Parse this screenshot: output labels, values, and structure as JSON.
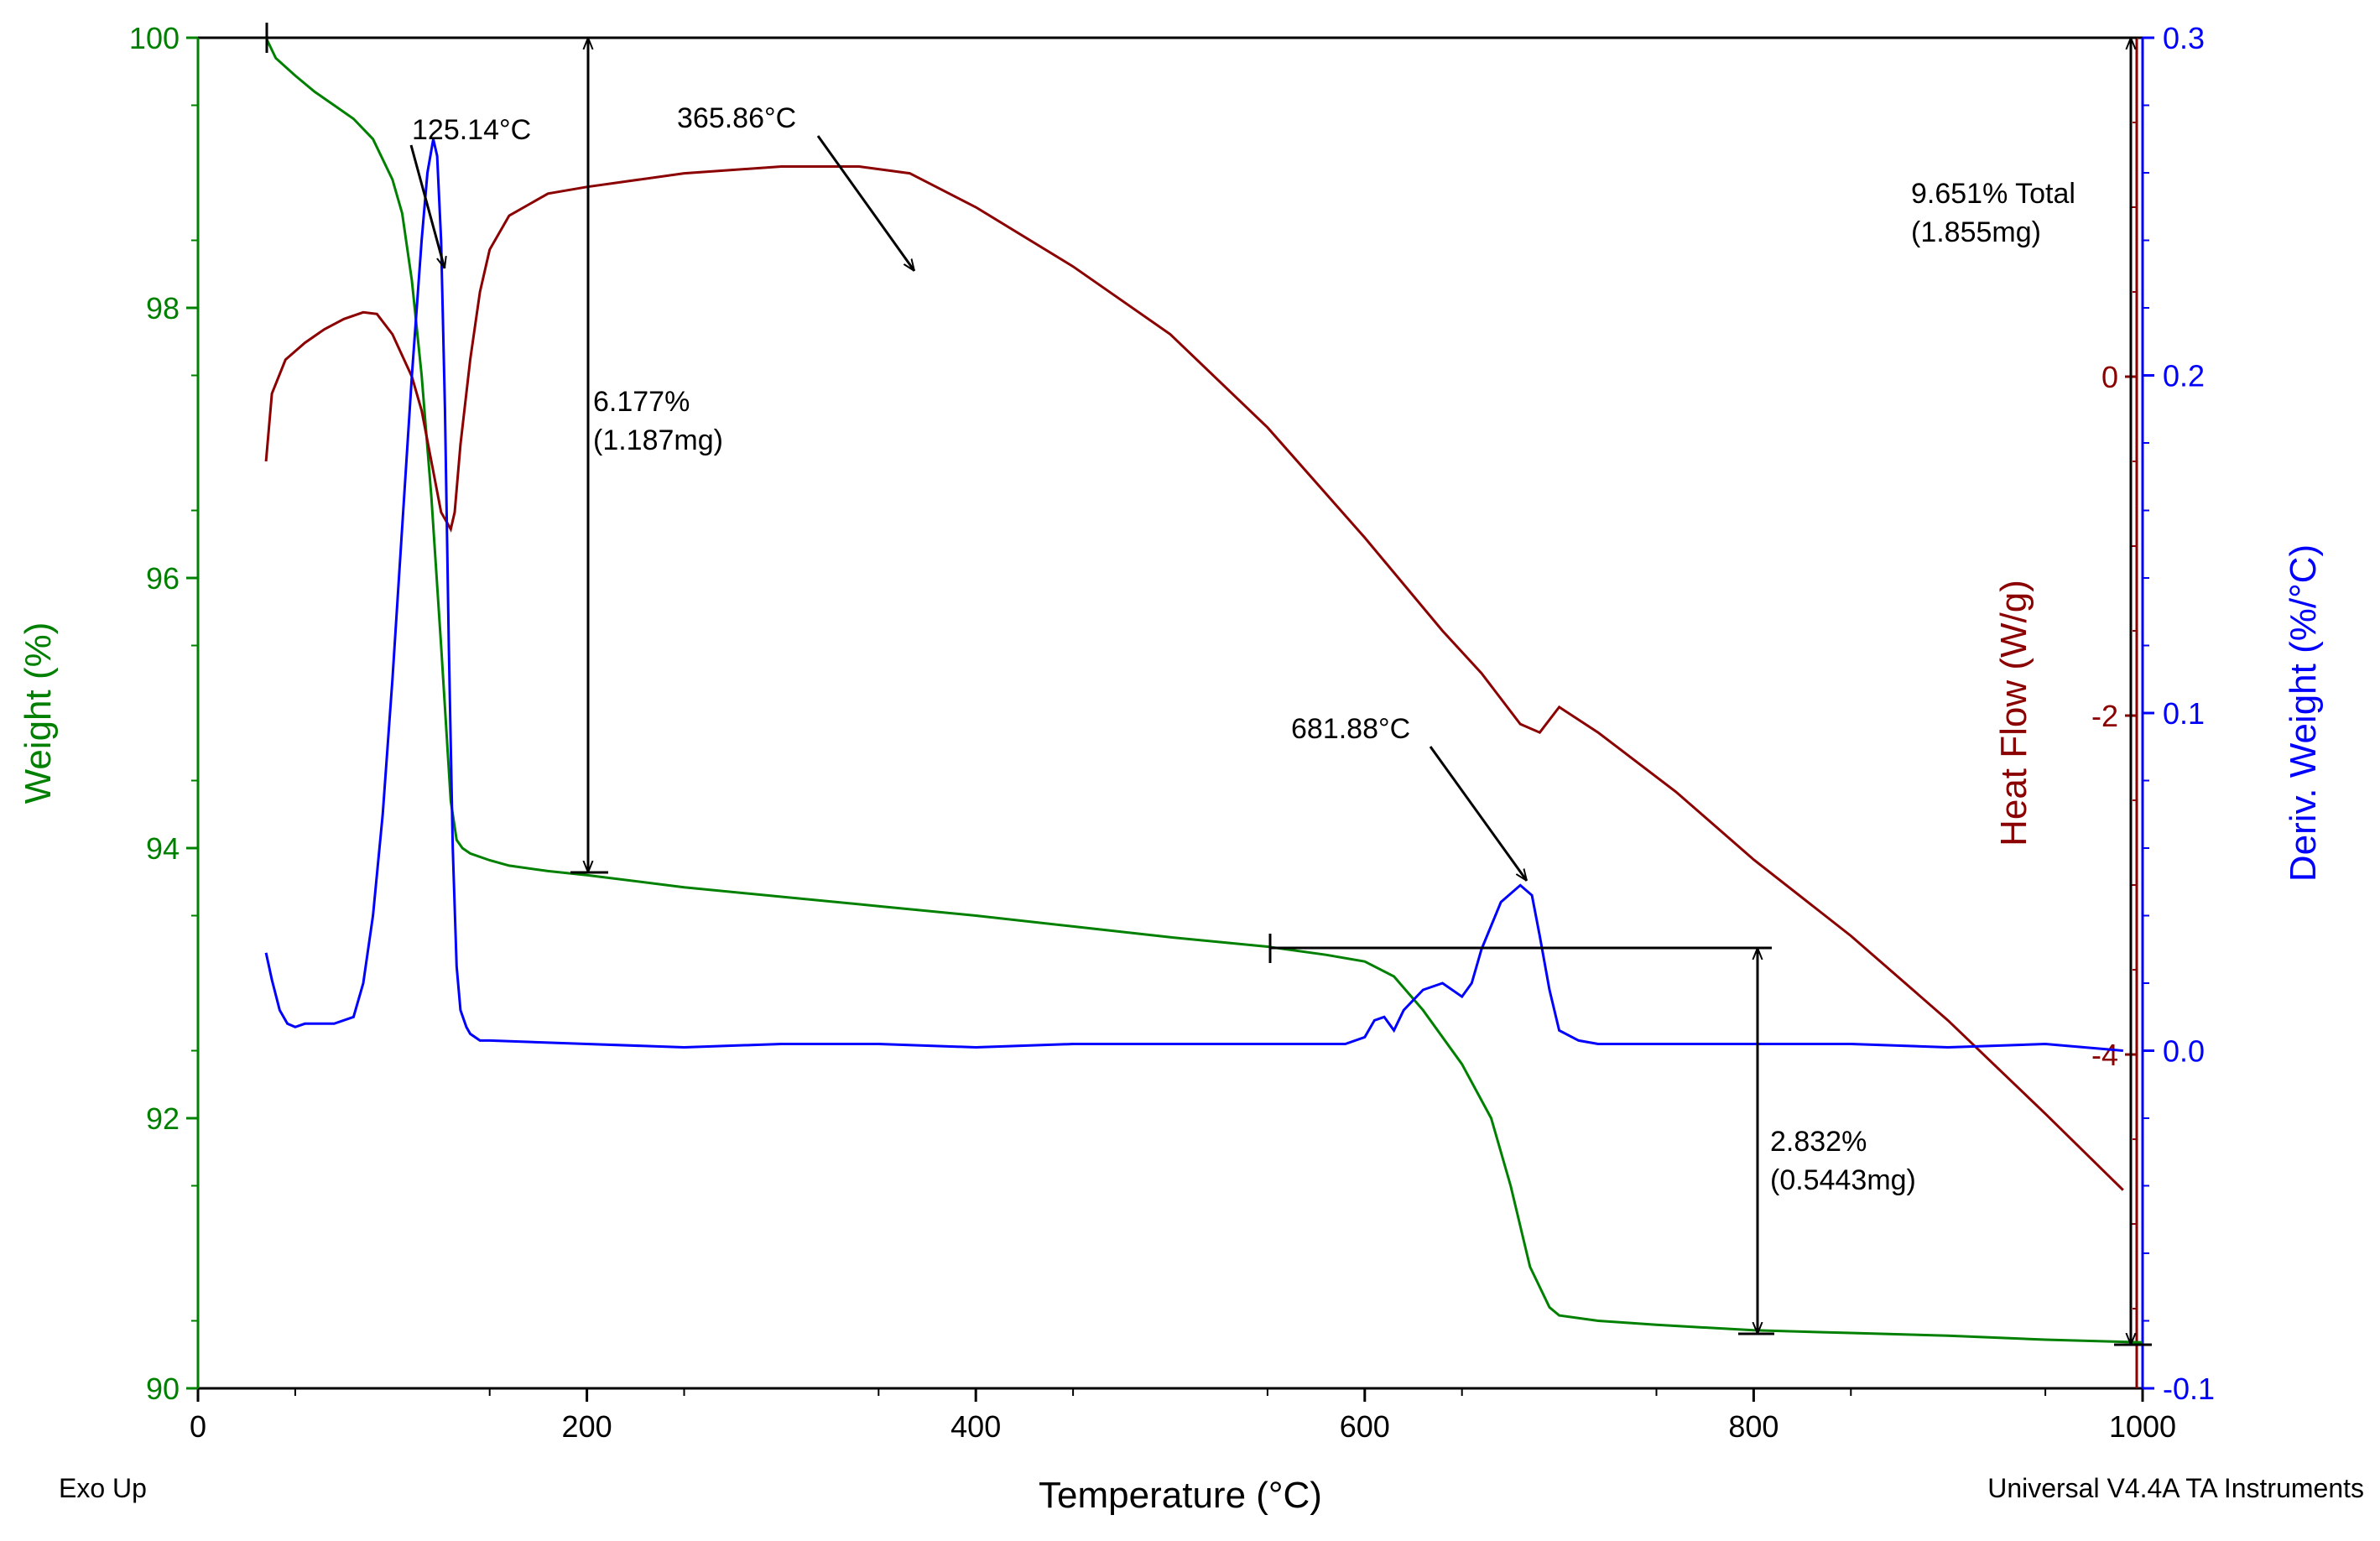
{
  "colors": {
    "weight": "#008000",
    "heat_flow": "#8B0000",
    "deriv": "#0000FF",
    "annotation": "#000000"
  },
  "footer": {
    "left": "Exo Up",
    "right": "Universal V4.4A TA Instruments"
  },
  "chart_data": {
    "type": "line",
    "xlabel": "Temperature (°C)",
    "xlim": [
      0,
      1000
    ],
    "x_ticks": [
      "0",
      "200",
      "400",
      "600",
      "800",
      "1000"
    ],
    "axes": {
      "weight": {
        "label": "Weight (%)",
        "lim": [
          90,
          100
        ],
        "ticks": [
          "90",
          "92",
          "94",
          "96",
          "98",
          "100"
        ]
      },
      "heat_flow": {
        "label": "Heat Flow (W/g)",
        "lim": [
          -5.97,
          2.0
        ],
        "ticks": [
          "-4",
          "-2",
          "0"
        ]
      },
      "deriv": {
        "label": "Deriv. Weight (%/°C)",
        "lim": [
          -0.1,
          0.3
        ],
        "ticks": [
          "-0.1",
          "0.0",
          "0.1",
          "0.2",
          "0.3"
        ]
      }
    },
    "series": [
      {
        "name": "Weight",
        "axis": "weight",
        "color": "#008000",
        "x": [
          35,
          40,
          50,
          60,
          70,
          80,
          90,
          100,
          105,
          110,
          115,
          120,
          125,
          130,
          133,
          136,
          140,
          150,
          160,
          180,
          200,
          250,
          300,
          350,
          400,
          450,
          500,
          550,
          580,
          600,
          615,
          630,
          650,
          665,
          675,
          685,
          695,
          700,
          720,
          750,
          800,
          850,
          900,
          950,
          1000
        ],
        "y": [
          100.0,
          99.85,
          99.72,
          99.6,
          99.5,
          99.4,
          99.25,
          98.95,
          98.7,
          98.2,
          97.5,
          96.6,
          95.5,
          94.35,
          94.06,
          94.0,
          93.96,
          93.91,
          93.87,
          93.83,
          93.8,
          93.71,
          93.64,
          93.57,
          93.5,
          93.42,
          93.34,
          93.27,
          93.21,
          93.16,
          93.05,
          92.8,
          92.4,
          92.0,
          91.5,
          90.9,
          90.6,
          90.54,
          90.5,
          90.47,
          90.43,
          90.41,
          90.39,
          90.36,
          90.34
        ]
      },
      {
        "name": "Heat Flow",
        "axis": "heat_flow",
        "color": "#8B0000",
        "x": [
          35,
          38,
          45,
          55,
          65,
          75,
          85,
          92,
          100,
          110,
          115,
          120,
          125,
          130,
          132,
          135,
          140,
          145,
          150,
          160,
          180,
          200,
          250,
          300,
          340,
          366,
          400,
          450,
          500,
          550,
          600,
          640,
          660,
          680,
          690,
          700,
          720,
          760,
          800,
          850,
          900,
          950,
          990
        ],
        "y": [
          -0.5,
          -0.1,
          0.1,
          0.2,
          0.28,
          0.34,
          0.38,
          0.37,
          0.25,
          0.0,
          -0.2,
          -0.5,
          -0.8,
          -0.9,
          -0.8,
          -0.4,
          0.1,
          0.5,
          0.75,
          0.95,
          1.08,
          1.12,
          1.2,
          1.24,
          1.24,
          1.2,
          1.0,
          0.65,
          0.25,
          -0.3,
          -0.95,
          -1.5,
          -1.75,
          -2.05,
          -2.1,
          -1.95,
          -2.1,
          -2.45,
          -2.85,
          -3.3,
          -3.8,
          -4.35,
          -4.8
        ]
      },
      {
        "name": "Deriv. Weight",
        "axis": "deriv",
        "color": "#0000FF",
        "x": [
          35,
          38,
          42,
          46,
          50,
          55,
          60,
          70,
          80,
          85,
          90,
          95,
          100,
          105,
          110,
          115,
          118,
          121,
          123,
          125,
          127,
          129,
          131,
          133,
          135,
          138,
          140,
          145,
          150,
          200,
          250,
          300,
          350,
          400,
          450,
          500,
          550,
          590,
          600,
          605,
          610,
          615,
          620,
          630,
          640,
          650,
          655,
          660,
          670,
          680,
          686,
          690,
          695,
          700,
          710,
          720,
          750,
          800,
          850,
          900,
          950,
          990
        ],
        "y": [
          0.029,
          0.021,
          0.012,
          0.008,
          0.007,
          0.008,
          0.008,
          0.008,
          0.01,
          0.02,
          0.04,
          0.07,
          0.11,
          0.155,
          0.2,
          0.24,
          0.26,
          0.27,
          0.265,
          0.24,
          0.19,
          0.12,
          0.06,
          0.025,
          0.012,
          0.007,
          0.005,
          0.003,
          0.003,
          0.002,
          0.001,
          0.002,
          0.002,
          0.001,
          0.002,
          0.002,
          0.002,
          0.002,
          0.004,
          0.009,
          0.01,
          0.006,
          0.012,
          0.018,
          0.02,
          0.016,
          0.02,
          0.03,
          0.044,
          0.049,
          0.046,
          0.034,
          0.018,
          0.006,
          0.003,
          0.002,
          0.002,
          0.002,
          0.002,
          0.001,
          0.002,
          0.0
        ]
      }
    ],
    "annotations": {
      "peak1": "125.14°C",
      "peak2": "365.86°C",
      "peak3": "681.88°C",
      "step1_pct": "6.177%",
      "step1_mg": "(1.187mg)",
      "step2_pct": "2.832%",
      "step2_mg": "(0.5443mg)",
      "total_pct": "9.651% Total",
      "total_mg": "(1.855mg)"
    }
  }
}
